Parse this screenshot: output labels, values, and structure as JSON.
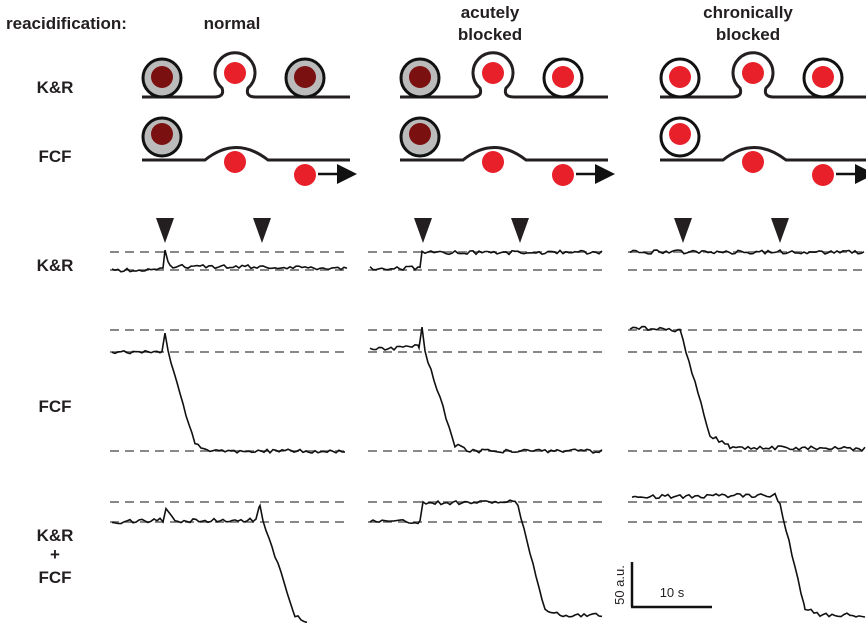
{
  "header": {
    "label": "reacidification:",
    "conditions": [
      [
        "normal"
      ],
      [
        "acutely",
        "blocked"
      ],
      [
        "chronically",
        "blocked"
      ]
    ]
  },
  "schematic_rows": [
    "K&R",
    "FCF"
  ],
  "trace_rows": [
    [
      "K&R"
    ],
    [
      "FCF"
    ],
    [
      "K&R",
      "+",
      "FCF"
    ]
  ],
  "scale_bar": {
    "y_label": "50 a.u.",
    "x_label": "10 s"
  }
}
